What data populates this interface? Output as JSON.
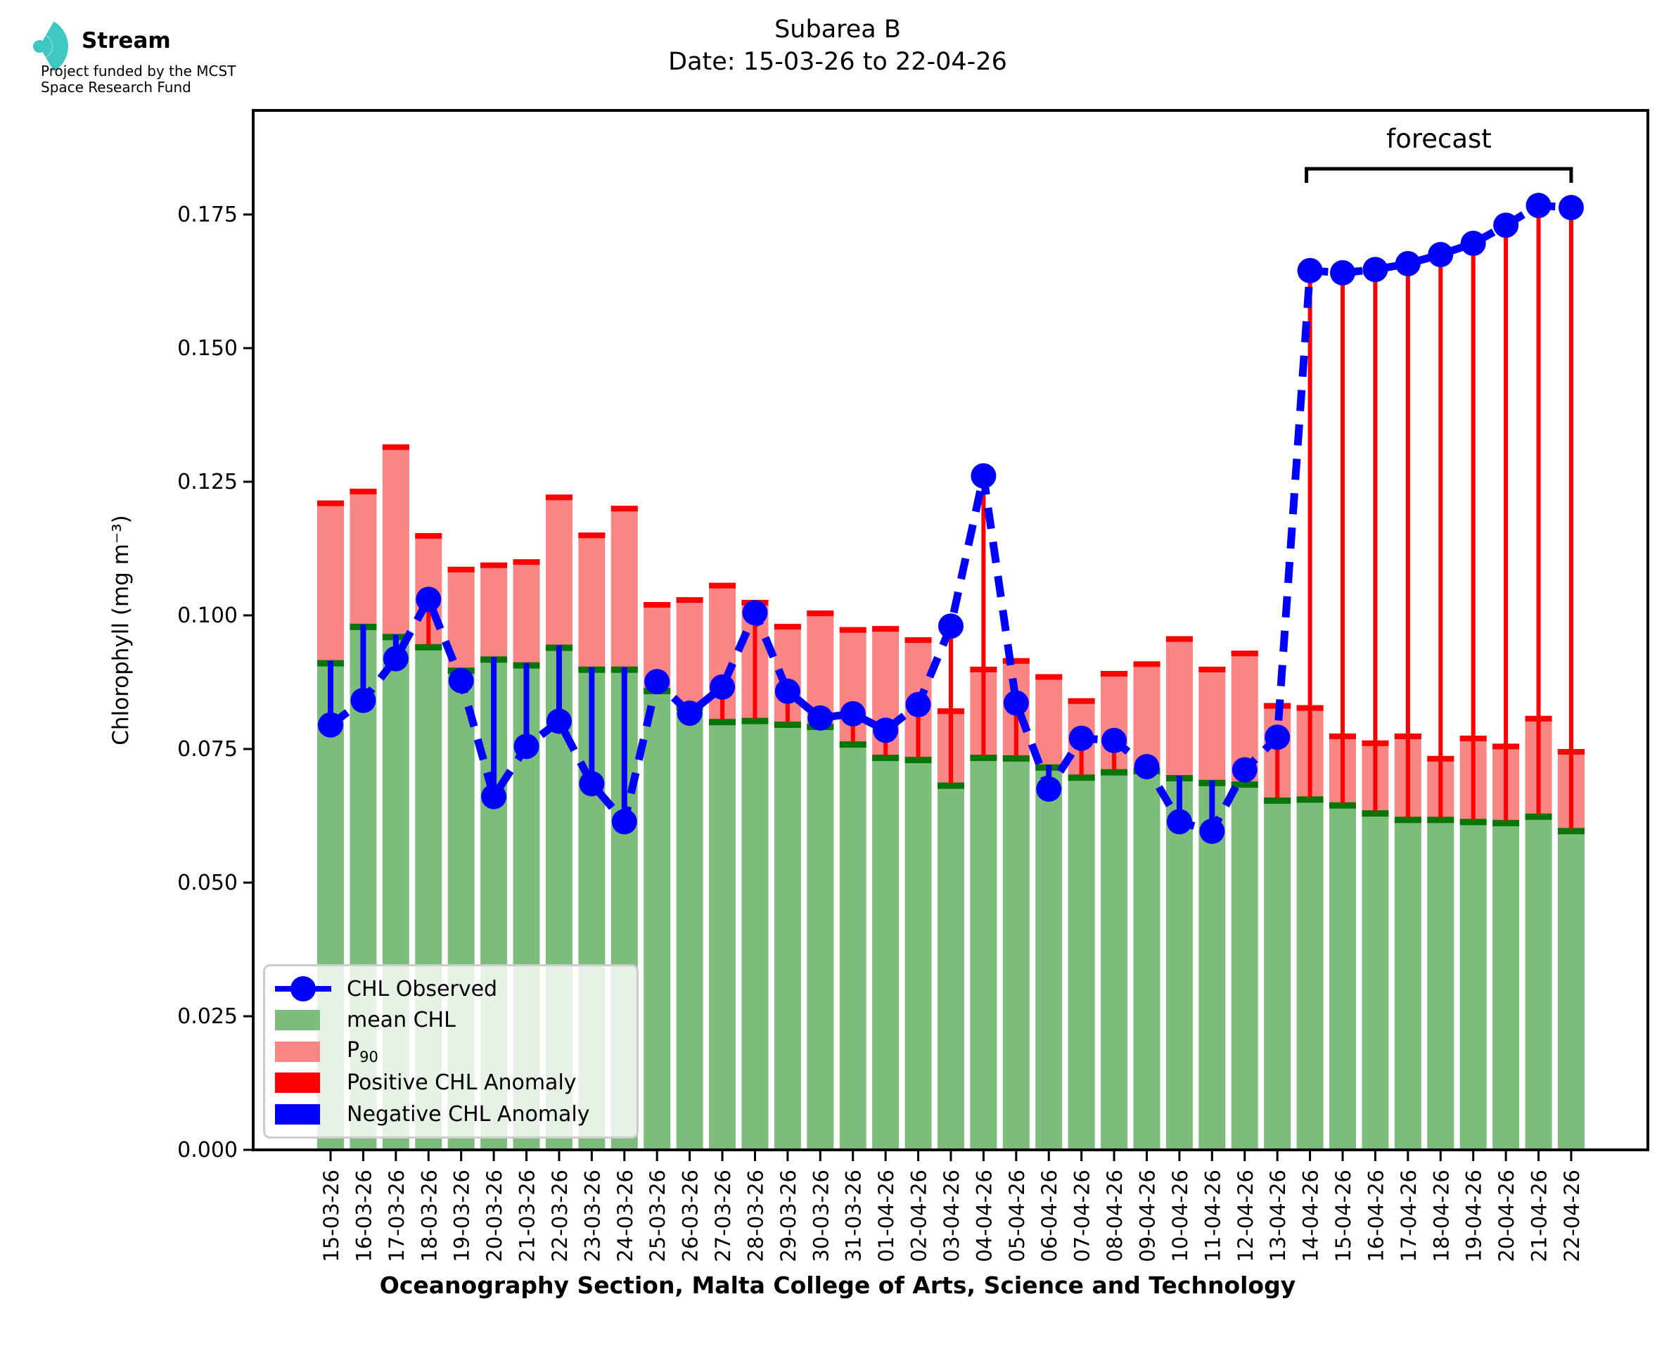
{
  "logo": {
    "title": "Stream",
    "subtitle_line1": "Project funded by the MCST",
    "subtitle_line2": "Space Research Fund"
  },
  "header": {
    "title": "Subarea B",
    "subtitle": "Date: 15-03-26 to 22-04-26"
  },
  "forecast_label": "forecast",
  "legend": {
    "observed": "CHL Observed",
    "mean": "mean CHL",
    "p90_main": "P",
    "p90_sub": "90",
    "positive": "Positive CHL Anomaly",
    "negative": "Negative CHL Anomaly"
  },
  "chart_data": {
    "type": "bar",
    "title": "Subarea B",
    "subtitle": "Date: 15-03-26 to 22-04-26",
    "xlabel": "Oceanography Section, Malta College of Arts, Science and Technology",
    "ylabel": "Chlorophyll (mg m⁻³)",
    "ylim": [
      0,
      0.1945
    ],
    "yticks": [
      "0.000",
      "0.025",
      "0.050",
      "0.075",
      "0.100",
      "0.125",
      "0.150",
      "0.175"
    ],
    "grid": false,
    "legend_position": "lower left",
    "forecast_label": "forecast",
    "forecast_start_index": 30,
    "categories": [
      "15-03-26",
      "16-03-26",
      "17-03-26",
      "18-03-26",
      "19-03-26",
      "20-03-26",
      "21-03-26",
      "22-03-26",
      "23-03-26",
      "24-03-26",
      "25-03-26",
      "26-03-26",
      "27-03-26",
      "28-03-26",
      "29-03-26",
      "30-03-26",
      "31-03-26",
      "01-04-26",
      "02-04-26",
      "03-04-26",
      "04-04-26",
      "05-04-26",
      "06-04-26",
      "07-04-26",
      "08-04-26",
      "09-04-26",
      "10-04-26",
      "11-04-26",
      "12-04-26",
      "13-04-26",
      "14-04-26",
      "15-04-26",
      "16-04-26",
      "17-04-26",
      "18-04-26",
      "19-04-26",
      "20-04-26",
      "21-04-26",
      "22-04-26"
    ],
    "series": [
      {
        "name": "mean CHL",
        "type": "bar",
        "color": "#7cbd7c",
        "cap_color": "#077507",
        "values": [
          0.0915,
          0.0983,
          0.0964,
          0.0945,
          0.0901,
          0.0922,
          0.0911,
          0.0944,
          0.0903,
          0.0903,
          0.0863,
          0.0833,
          0.0805,
          0.0807,
          0.08,
          0.0796,
          0.0763,
          0.0738,
          0.0734,
          0.0686,
          0.0738,
          0.0737,
          0.072,
          0.0701,
          0.0711,
          0.0713,
          0.07,
          0.0691,
          0.0688,
          0.0658,
          0.066,
          0.0649,
          0.0634,
          0.0622,
          0.0622,
          0.0618,
          0.0616,
          0.0628,
          0.0601
        ]
      },
      {
        "name": "P90",
        "type": "bar",
        "color": "#fa8585",
        "cap_color": "#fe0000",
        "values": [
          0.1215,
          0.1237,
          0.132,
          0.1154,
          0.1091,
          0.1099,
          0.1105,
          0.1226,
          0.1155,
          0.1205,
          0.1025,
          0.1034,
          0.1061,
          0.1029,
          0.0984,
          0.1009,
          0.0978,
          0.098,
          0.0959,
          0.0826,
          0.0904,
          0.092,
          0.089,
          0.0845,
          0.0896,
          0.0914,
          0.0961,
          0.0904,
          0.0934,
          0.0836,
          0.0832,
          0.0779,
          0.0766,
          0.0779,
          0.0737,
          0.0775,
          0.076,
          0.0812,
          0.075
        ]
      },
      {
        "name": "CHL Observed",
        "type": "line",
        "color": "#0000fe",
        "values": [
          0.0795,
          0.0841,
          0.0919,
          0.103,
          0.0878,
          0.0661,
          0.0755,
          0.0802,
          0.0685,
          0.0614,
          0.0876,
          0.0817,
          0.0866,
          0.1005,
          0.0858,
          0.0808,
          0.0816,
          0.0785,
          0.0833,
          0.098,
          0.1261,
          0.0836,
          0.0675,
          0.077,
          0.0766,
          0.0717,
          0.0614,
          0.0596,
          0.0711,
          0.0772,
          0.1645,
          0.1641,
          0.1647,
          0.1658,
          0.1675,
          0.1696,
          0.173,
          0.1767,
          0.1763
        ]
      }
    ],
    "anomaly_colors": {
      "positive": "#fe0000",
      "negative": "#0000fe"
    },
    "logo_color": "#3fc8c2"
  }
}
